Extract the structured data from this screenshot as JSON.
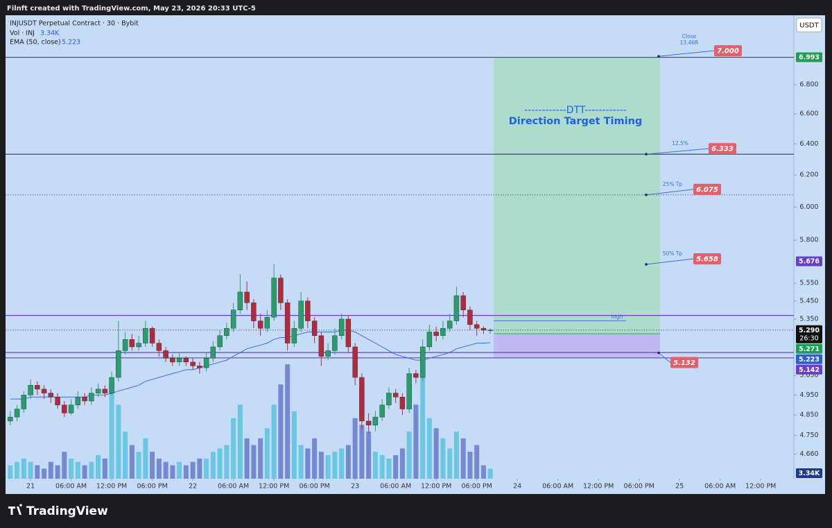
{
  "header": {
    "text": "Filnft created with TradingView.com, May 23, 2026 20:33 UTC-5"
  },
  "currency": "USDT",
  "footer": {
    "brand": "TradingView"
  },
  "chart_data": {
    "type": "candlestick",
    "title": "INJUSDT Perpetual Contract · 30 · Bybit",
    "up_color": "#2a9d6f",
    "down_color": "#b22a3c",
    "x": [
      -3,
      -2,
      -1,
      0,
      1,
      2,
      3,
      4,
      5,
      6,
      7,
      8,
      9,
      10,
      11,
      12,
      13,
      14,
      15,
      16,
      17,
      18,
      19,
      20,
      21,
      22,
      23,
      24,
      25,
      26,
      27,
      28,
      29,
      30,
      31,
      32,
      33,
      34,
      35,
      36,
      37,
      38,
      39,
      40,
      41,
      42,
      43,
      44,
      45,
      46,
      47,
      48,
      49,
      50,
      51,
      52,
      53,
      54,
      55,
      56,
      57,
      58,
      59,
      60,
      61,
      62,
      63,
      64,
      65,
      66,
      67,
      68
    ],
    "candles": [
      [
        4.82,
        4.87,
        4.8,
        4.84
      ],
      [
        4.84,
        4.9,
        4.82,
        4.88
      ],
      [
        4.88,
        4.97,
        4.86,
        4.95
      ],
      [
        4.95,
        5.03,
        4.93,
        5.0
      ],
      [
        5.0,
        5.02,
        4.95,
        4.98
      ],
      [
        4.98,
        5.0,
        4.93,
        4.96
      ],
      [
        4.96,
        4.98,
        4.91,
        4.94
      ],
      [
        4.94,
        4.96,
        4.88,
        4.9
      ],
      [
        4.9,
        4.92,
        4.84,
        4.86
      ],
      [
        4.86,
        4.93,
        4.85,
        4.9
      ],
      [
        4.9,
        4.97,
        4.88,
        4.94
      ],
      [
        4.94,
        4.96,
        4.9,
        4.92
      ],
      [
        4.92,
        4.99,
        4.9,
        4.96
      ],
      [
        4.96,
        5.01,
        4.94,
        4.98
      ],
      [
        4.98,
        5.0,
        4.94,
        4.96
      ],
      [
        4.96,
        5.07,
        4.95,
        5.04
      ],
      [
        5.04,
        5.34,
        5.02,
        5.18
      ],
      [
        5.18,
        5.28,
        5.16,
        5.24
      ],
      [
        5.24,
        5.27,
        5.18,
        5.2
      ],
      [
        5.2,
        5.26,
        5.18,
        5.22
      ],
      [
        5.22,
        5.34,
        5.2,
        5.3
      ],
      [
        5.3,
        5.31,
        5.2,
        5.22
      ],
      [
        5.22,
        5.24,
        5.15,
        5.18
      ],
      [
        5.18,
        5.2,
        5.12,
        5.14
      ],
      [
        5.14,
        5.16,
        5.1,
        5.12
      ],
      [
        5.12,
        5.17,
        5.1,
        5.14
      ],
      [
        5.14,
        5.15,
        5.1,
        5.12
      ],
      [
        5.12,
        5.14,
        5.08,
        5.1
      ],
      [
        5.1,
        5.12,
        5.06,
        5.09
      ],
      [
        5.09,
        5.17,
        5.07,
        5.14
      ],
      [
        5.14,
        5.23,
        5.12,
        5.2
      ],
      [
        5.2,
        5.29,
        5.18,
        5.26
      ],
      [
        5.26,
        5.33,
        5.24,
        5.3
      ],
      [
        5.3,
        5.44,
        5.28,
        5.4
      ],
      [
        5.4,
        5.6,
        5.38,
        5.5
      ],
      [
        5.5,
        5.56,
        5.4,
        5.44
      ],
      [
        5.44,
        5.46,
        5.3,
        5.34
      ],
      [
        5.34,
        5.38,
        5.26,
        5.3
      ],
      [
        5.3,
        5.4,
        5.28,
        5.36
      ],
      [
        5.36,
        5.66,
        5.34,
        5.58
      ],
      [
        5.58,
        5.6,
        5.4,
        5.44
      ],
      [
        5.44,
        5.46,
        5.18,
        5.22
      ],
      [
        5.22,
        5.34,
        5.2,
        5.3
      ],
      [
        5.3,
        5.5,
        5.28,
        5.45
      ],
      [
        5.45,
        5.47,
        5.3,
        5.34
      ],
      [
        5.34,
        5.36,
        5.22,
        5.26
      ],
      [
        5.26,
        5.28,
        5.1,
        5.15
      ],
      [
        5.15,
        5.22,
        5.13,
        5.18
      ],
      [
        5.18,
        5.3,
        5.16,
        5.26
      ],
      [
        5.26,
        5.38,
        5.24,
        5.35
      ],
      [
        5.35,
        5.37,
        5.17,
        5.2
      ],
      [
        5.2,
        5.22,
        5.0,
        5.04
      ],
      [
        5.04,
        5.06,
        4.78,
        4.82
      ],
      [
        4.82,
        4.86,
        4.76,
        4.8
      ],
      [
        4.8,
        4.87,
        4.77,
        4.84
      ],
      [
        4.84,
        4.93,
        4.82,
        4.9
      ],
      [
        4.9,
        4.99,
        4.88,
        4.96
      ],
      [
        4.96,
        4.98,
        4.91,
        4.94
      ],
      [
        4.94,
        4.96,
        4.85,
        4.88
      ],
      [
        4.88,
        5.09,
        4.86,
        5.06
      ],
      [
        5.06,
        5.08,
        5.01,
        5.04
      ],
      [
        5.04,
        5.24,
        5.02,
        5.2
      ],
      [
        5.2,
        5.32,
        5.18,
        5.28
      ],
      [
        5.28,
        5.31,
        5.23,
        5.26
      ],
      [
        5.26,
        5.34,
        5.24,
        5.3
      ],
      [
        5.3,
        5.38,
        5.28,
        5.34
      ],
      [
        5.34,
        5.53,
        5.32,
        5.48
      ],
      [
        5.48,
        5.5,
        5.36,
        5.4
      ],
      [
        5.4,
        5.42,
        5.29,
        5.32
      ],
      [
        5.32,
        5.34,
        5.26,
        5.3
      ],
      [
        5.3,
        5.31,
        5.27,
        5.29
      ],
      [
        5.29,
        5.3,
        5.27,
        5.29
      ]
    ],
    "volume": {
      "name": "Vol · INJ",
      "last_label": "3.34K",
      "up_color": "#5fc4e0",
      "down_color": "#6a80cc",
      "values": [
        4,
        5,
        6,
        5,
        4,
        3,
        5,
        4,
        8,
        6,
        5,
        4,
        5,
        7,
        6,
        28,
        22,
        14,
        10,
        8,
        12,
        8,
        6,
        5,
        4,
        5,
        4,
        5,
        6,
        6,
        8,
        9,
        10,
        18,
        22,
        12,
        10,
        12,
        15,
        22,
        28,
        34,
        20,
        10,
        9,
        12,
        8,
        7,
        8,
        9,
        10,
        18,
        16,
        14,
        8,
        7,
        6,
        7,
        9,
        14,
        22,
        30,
        18,
        15,
        12,
        9,
        14,
        12,
        8,
        10,
        4,
        3
      ]
    },
    "ema": {
      "name": "EMA (50, close)",
      "last_label": "5.223",
      "color": "#3b6fd8",
      "values": [
        4.93,
        4.93,
        4.93,
        4.94,
        4.94,
        4.94,
        4.94,
        4.94,
        4.94,
        4.94,
        4.94,
        4.94,
        4.95,
        4.95,
        4.95,
        4.96,
        4.97,
        4.98,
        4.99,
        5.0,
        5.02,
        5.03,
        5.04,
        5.05,
        5.06,
        5.07,
        5.08,
        5.08,
        5.09,
        5.1,
        5.11,
        5.12,
        5.13,
        5.15,
        5.17,
        5.19,
        5.2,
        5.21,
        5.22,
        5.24,
        5.25,
        5.25,
        5.26,
        5.27,
        5.28,
        5.28,
        5.28,
        5.28,
        5.28,
        5.29,
        5.29,
        5.28,
        5.26,
        5.24,
        5.22,
        5.2,
        5.18,
        5.16,
        5.15,
        5.14,
        5.13,
        5.13,
        5.14,
        5.15,
        5.16,
        5.17,
        5.19,
        5.2,
        5.21,
        5.22,
        5.22,
        5.223
      ]
    },
    "log_scale": true,
    "xlim": [
      -3.7,
      112.9
    ],
    "ylim": [
      4.544,
      7.3
    ],
    "xticks": [
      {
        "value": 0,
        "label": "21"
      },
      {
        "value": 6,
        "label": "06:00 AM"
      },
      {
        "value": 12,
        "label": "12:00 PM"
      },
      {
        "value": 18,
        "label": "06:00 PM"
      },
      {
        "value": 24,
        "label": "22"
      },
      {
        "value": 30,
        "label": "06:00 AM"
      },
      {
        "value": 36,
        "label": "12:00 PM"
      },
      {
        "value": 42,
        "label": "06:00 PM"
      },
      {
        "value": 48,
        "label": "23"
      },
      {
        "value": 54,
        "label": "06:00 AM"
      },
      {
        "value": 60,
        "label": "12:00 PM"
      },
      {
        "value": 66,
        "label": "06:00 PM"
      },
      {
        "value": 72,
        "label": "24"
      },
      {
        "value": 78,
        "label": "06:00 AM"
      },
      {
        "value": 84,
        "label": "12:00 PM"
      },
      {
        "value": 90,
        "label": "06:00 PM"
      },
      {
        "value": 96,
        "label": "25"
      },
      {
        "value": 102,
        "label": "06:00 AM"
      },
      {
        "value": 108,
        "label": "12:00 PM"
      }
    ],
    "yticks": [
      {
        "value": 6.8,
        "label": "6.800"
      },
      {
        "value": 6.6,
        "label": "6.600"
      },
      {
        "value": 6.4,
        "label": "6.400"
      },
      {
        "value": 6.2,
        "label": "6.200"
      },
      {
        "value": 6.0,
        "label": "6.000"
      },
      {
        "value": 5.8,
        "label": "5.800"
      },
      {
        "value": 5.55,
        "label": "5.550"
      },
      {
        "value": 5.45,
        "label": "5.450"
      },
      {
        "value": 5.35,
        "label": "5.350"
      },
      {
        "value": 5.05,
        "label": "5.050"
      },
      {
        "value": 4.95,
        "label": "4.950"
      },
      {
        "value": 4.85,
        "label": "4.850"
      },
      {
        "value": 4.75,
        "label": "4.750"
      },
      {
        "value": 4.66,
        "label": "4.660"
      }
    ],
    "levels": [
      {
        "value": 6.993,
        "style": "solid",
        "color": "#3d4c5c"
      },
      {
        "value": 6.333,
        "style": "solid",
        "color": "#3d4c5c"
      },
      {
        "value": 6.075,
        "style": "dotted",
        "color": "#5a6470"
      },
      {
        "value": 5.37,
        "style": "solid",
        "color": "#6a3fc0"
      },
      {
        "value": 5.29,
        "style": "dotted",
        "color": "#5a6470"
      },
      {
        "value": 5.17,
        "style": "solid",
        "color": "#6a3fc0"
      },
      {
        "value": 5.142,
        "style": "solid",
        "color": "#6a3fc0"
      }
    ],
    "zones": [
      {
        "from": 6.993,
        "to": 5.271,
        "color": "#a9dcc4"
      },
      {
        "from": 5.271,
        "to": 5.142,
        "color": "#bcb4f0"
      }
    ],
    "price_labels": [
      {
        "value": 6.993,
        "label": "6.993",
        "color": "#1f9d55"
      },
      {
        "value": 5.676,
        "label": "5.676",
        "color": "#6a3fc0"
      },
      {
        "value": 5.29,
        "label": "5.290",
        "sub": "26:30",
        "color": "#111111"
      },
      {
        "value": 5.271,
        "label": "5.271",
        "color": "#1f9d55"
      },
      {
        "value": 5.223,
        "label": "5.223",
        "color": "#2a5fd6"
      },
      {
        "value": 5.142,
        "label": "5.142",
        "color": "#6a3fc0"
      }
    ],
    "targets": [
      {
        "value": 7.0,
        "label": "7.000",
        "note": "Close",
        "note2": "13.46R"
      },
      {
        "value": 6.333,
        "label": "6.333",
        "note": "12.5%"
      },
      {
        "value": 6.075,
        "label": "6.075",
        "note": "25% Tp"
      },
      {
        "value": 5.658,
        "label": "5.658",
        "note": "50% Tp"
      },
      {
        "value": 5.132,
        "label": "5.132"
      }
    ],
    "target_color": "#e0606e",
    "annotations": [
      {
        "text": "high",
        "value": 5.341
      }
    ],
    "dtt": {
      "title": "------------DTT------------",
      "subtitle": "Direction Target Timing",
      "color": "#1f5fe0"
    }
  }
}
